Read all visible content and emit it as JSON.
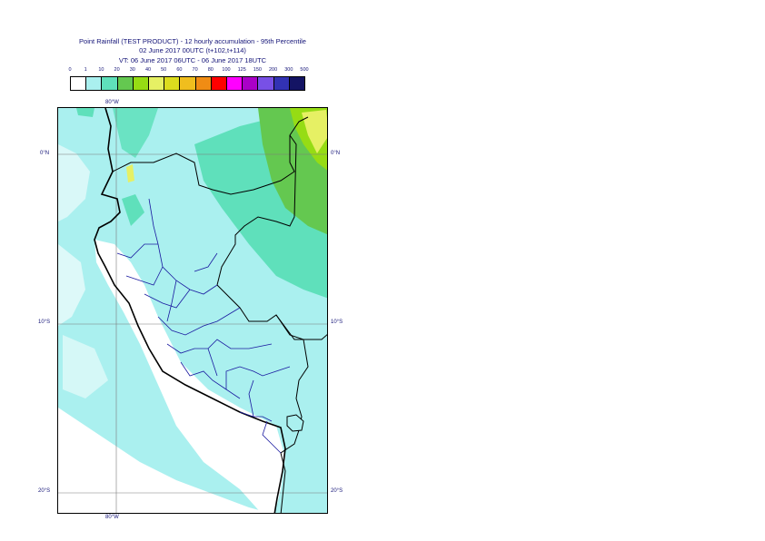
{
  "title": {
    "line1": "Point Rainfall (TEST PRODUCT) - 12 hourly accumulation - 95th Percentile",
    "line2": "02 June 2017 00UTC (t+102,t+114)",
    "line3": "VT: 06 June 2017 06UTC - 06 June 2017 18UTC"
  },
  "legend": {
    "thresholds": [
      "0",
      "1",
      "10",
      "20",
      "30",
      "40",
      "50",
      "60",
      "70",
      "80",
      "100",
      "125",
      "150",
      "200",
      "300",
      "500"
    ],
    "colors": [
      "#ffffff",
      "#aaf0ef",
      "#5fe0bb",
      "#64c850",
      "#96dc14",
      "#e6f064",
      "#dcdc1e",
      "#f0be1e",
      "#f08c14",
      "#ff0000",
      "#ff00ff",
      "#aa00c8",
      "#7850e6",
      "#3232b4",
      "#141464"
    ]
  },
  "map": {
    "lat_labels": [
      "0°N",
      "10°S",
      "20°S"
    ],
    "lon_labels": [
      "80°W",
      "80°W"
    ]
  }
}
